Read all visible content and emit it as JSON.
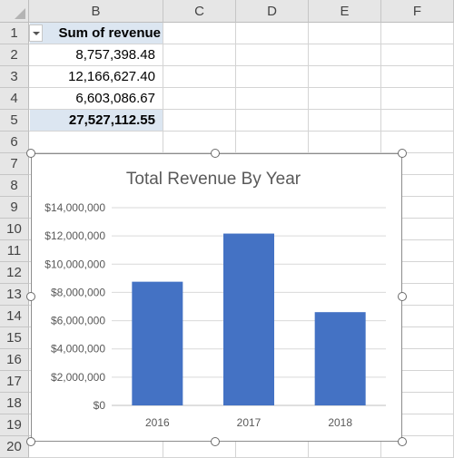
{
  "sheet": {
    "columns": [
      "B",
      "C",
      "D",
      "E",
      "F"
    ],
    "rows": [
      "1",
      "2",
      "3",
      "4",
      "5",
      "6",
      "7",
      "8",
      "9",
      "10",
      "11",
      "12",
      "13",
      "14",
      "15",
      "16",
      "17",
      "18",
      "19",
      "20"
    ],
    "pivot": {
      "header": "Sum of revenue",
      "values": [
        "8,757,398.48",
        "12,166,627.40",
        "6,603,086.67"
      ],
      "total": "27,527,112.55"
    }
  },
  "chart_data": {
    "type": "bar",
    "title": "Total Revenue By Year",
    "categories": [
      "2016",
      "2017",
      "2018"
    ],
    "values": [
      8757398.48,
      12166627.4,
      6603086.67
    ],
    "ylim": [
      0,
      14000000
    ],
    "yticks": [
      0,
      2000000,
      4000000,
      6000000,
      8000000,
      10000000,
      12000000,
      14000000
    ],
    "ytick_labels": [
      "$0",
      "$2,000,000",
      "$4,000,000",
      "$6,000,000",
      "$8,000,000",
      "$10,000,000",
      "$12,000,000",
      "$14,000,000"
    ],
    "grid": true,
    "legend": "none",
    "bar_color": "#4472c4",
    "gridline_color": "#d9d9d9"
  }
}
